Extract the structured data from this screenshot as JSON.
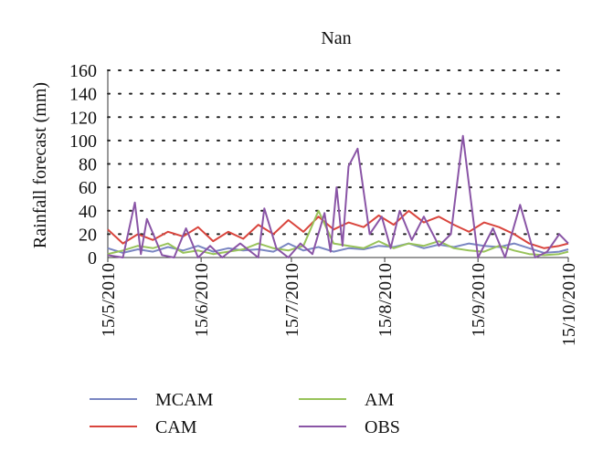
{
  "chart_data": {
    "type": "line",
    "title": "Nan",
    "xlabel": "",
    "ylabel": "Rainfall forecast (mm)",
    "x_type": "date",
    "xlim": [
      "2010-05-15",
      "2010-10-15"
    ],
    "ylim": [
      0,
      160
    ],
    "yticks": [
      0,
      20,
      40,
      60,
      80,
      100,
      120,
      140,
      160
    ],
    "xticks": [
      "15/5/2010",
      "15/6/2010",
      "15/7/2010",
      "15/8/2010",
      "15/9/2010",
      "15/10/2010"
    ],
    "grid": "horizontal dotted",
    "legend_position": "bottom",
    "colors": {
      "MCAM": "#7a86c2",
      "CAM": "#d9453d",
      "AM": "#98c35a",
      "OBS": "#8a55a6"
    },
    "series": [
      {
        "name": "MCAM",
        "x": [
          "2010-05-15",
          "2010-05-20",
          "2010-05-25",
          "2010-05-30",
          "2010-06-04",
          "2010-06-09",
          "2010-06-14",
          "2010-06-19",
          "2010-06-24",
          "2010-06-29",
          "2010-07-04",
          "2010-07-09",
          "2010-07-14",
          "2010-07-19",
          "2010-07-24",
          "2010-07-29",
          "2010-08-03",
          "2010-08-08",
          "2010-08-13",
          "2010-08-18",
          "2010-08-23",
          "2010-08-28",
          "2010-09-02",
          "2010-09-07",
          "2010-09-12",
          "2010-09-17",
          "2010-09-22",
          "2010-09-27",
          "2010-10-02",
          "2010-10-07",
          "2010-10-12",
          "2010-10-15"
        ],
        "y": [
          8,
          4,
          7,
          5,
          9,
          6,
          10,
          5,
          8,
          6,
          7,
          5,
          12,
          6,
          9,
          5,
          8,
          7,
          10,
          9,
          12,
          8,
          11,
          9,
          12,
          10,
          9,
          12,
          8,
          4,
          5,
          7
        ]
      },
      {
        "name": "CAM",
        "x": [
          "2010-05-15",
          "2010-05-20",
          "2010-05-25",
          "2010-05-30",
          "2010-06-04",
          "2010-06-09",
          "2010-06-14",
          "2010-06-19",
          "2010-06-24",
          "2010-06-29",
          "2010-07-04",
          "2010-07-09",
          "2010-07-14",
          "2010-07-19",
          "2010-07-24",
          "2010-07-29",
          "2010-08-03",
          "2010-08-08",
          "2010-08-13",
          "2010-08-18",
          "2010-08-23",
          "2010-08-28",
          "2010-09-02",
          "2010-09-07",
          "2010-09-12",
          "2010-09-17",
          "2010-09-22",
          "2010-09-27",
          "2010-10-02",
          "2010-10-07",
          "2010-10-12",
          "2010-10-15"
        ],
        "y": [
          24,
          12,
          20,
          15,
          22,
          18,
          26,
          14,
          22,
          16,
          28,
          20,
          32,
          22,
          35,
          24,
          30,
          26,
          36,
          28,
          40,
          30,
          35,
          28,
          22,
          30,
          26,
          20,
          12,
          8,
          10,
          12
        ]
      },
      {
        "name": "AM",
        "x": [
          "2010-05-15",
          "2010-05-20",
          "2010-05-25",
          "2010-05-30",
          "2010-06-04",
          "2010-06-09",
          "2010-06-14",
          "2010-06-19",
          "2010-06-24",
          "2010-06-29",
          "2010-07-04",
          "2010-07-09",
          "2010-07-14",
          "2010-07-19",
          "2010-07-24",
          "2010-07-29",
          "2010-08-03",
          "2010-08-08",
          "2010-08-13",
          "2010-08-18",
          "2010-08-23",
          "2010-08-28",
          "2010-09-02",
          "2010-09-07",
          "2010-09-12",
          "2010-09-17",
          "2010-09-22",
          "2010-09-27",
          "2010-10-02",
          "2010-10-07",
          "2010-10-12",
          "2010-10-15"
        ],
        "y": [
          3,
          6,
          10,
          8,
          12,
          4,
          6,
          3,
          5,
          7,
          12,
          8,
          6,
          10,
          40,
          12,
          10,
          8,
          14,
          8,
          12,
          10,
          14,
          8,
          6,
          5,
          10,
          6,
          3,
          2,
          3,
          5
        ]
      },
      {
        "name": "OBS",
        "x": [
          "2010-05-15",
          "2010-05-20",
          "2010-05-24",
          "2010-05-26",
          "2010-05-28",
          "2010-06-02",
          "2010-06-06",
          "2010-06-10",
          "2010-06-14",
          "2010-06-18",
          "2010-06-22",
          "2010-06-28",
          "2010-07-04",
          "2010-07-06",
          "2010-07-10",
          "2010-07-14",
          "2010-07-18",
          "2010-07-22",
          "2010-07-26",
          "2010-07-28",
          "2010-07-30",
          "2010-08-01",
          "2010-08-03",
          "2010-08-06",
          "2010-08-10",
          "2010-08-14",
          "2010-08-17",
          "2010-08-20",
          "2010-08-24",
          "2010-08-28",
          "2010-09-02",
          "2010-09-06",
          "2010-09-10",
          "2010-09-15",
          "2010-09-20",
          "2010-09-24",
          "2010-09-29",
          "2010-10-04",
          "2010-10-08",
          "2010-10-12",
          "2010-10-15"
        ],
        "y": [
          2,
          0,
          47,
          3,
          33,
          2,
          0,
          25,
          0,
          10,
          0,
          12,
          0,
          42,
          8,
          0,
          12,
          3,
          38,
          5,
          60,
          10,
          78,
          93,
          20,
          35,
          8,
          40,
          15,
          35,
          10,
          20,
          104,
          0,
          25,
          0,
          45,
          0,
          5,
          20,
          12
        ]
      }
    ]
  }
}
